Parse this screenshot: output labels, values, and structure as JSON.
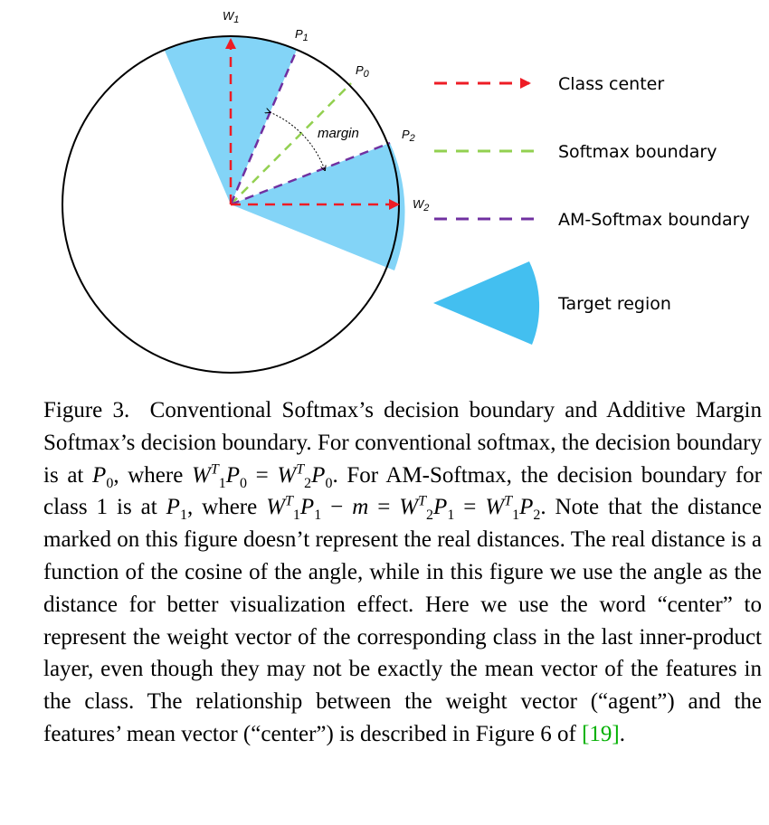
{
  "figure": {
    "labels": {
      "w1": "W",
      "w1_sub": "1",
      "w2": "W",
      "w2_sub": "2",
      "p0": "P",
      "p0_sub": "0",
      "p1": "P",
      "p1_sub": "1",
      "p2": "P",
      "p2_sub": "2",
      "margin": "margin"
    },
    "legend": [
      {
        "label": "Class center",
        "style": "red-dashed-arrow",
        "color": "#ee1c25"
      },
      {
        "label": "Softmax boundary",
        "style": "green-dashed",
        "color": "#92d050"
      },
      {
        "label": "AM-Softmax boundary",
        "style": "purple-dashed",
        "color": "#7030a0"
      },
      {
        "label": "Target region",
        "style": "blue-sector",
        "color": "#43bff0"
      }
    ],
    "colors": {
      "sector": "#83d4f7",
      "target": "#43bff0",
      "center": "#ee1c25",
      "softmax": "#92d050",
      "amsoftmax": "#7030a0"
    }
  },
  "caption": {
    "label": "Figure 3.",
    "t1": "Conventional Softmax’s decision boundary and Additive Margin Softmax’s decision boundary. For conventional softmax, the decision boundary is at ",
    "t2": ", where ",
    "t3": ". For AM-Softmax, the decision boundary for class 1 is at ",
    "t4": ", where ",
    "t5": ". Note that the distance marked on this figure doesn’t represent the real distances. The real distance is a function of the cosine of the angle, while in this figure we use the angle as the distance for better visualization effect. Here we use the word “center” to represent the weight vector of the corresponding class in the last inner-product layer, even though they may not be exactly the mean vector of the features in the class. The relationship between the weight vector (“agent”) and the features’ mean vector (“center”) is described in Figure 6 of ",
    "ref": "[19]",
    "t6": ".",
    "sym_P": "P",
    "sym_W": "W",
    "sym_m": "m",
    "sym_T": "T",
    "sub0": "0",
    "sub1": "1",
    "sub2": "2",
    "op_eq": " = ",
    "op_minus": " − "
  }
}
